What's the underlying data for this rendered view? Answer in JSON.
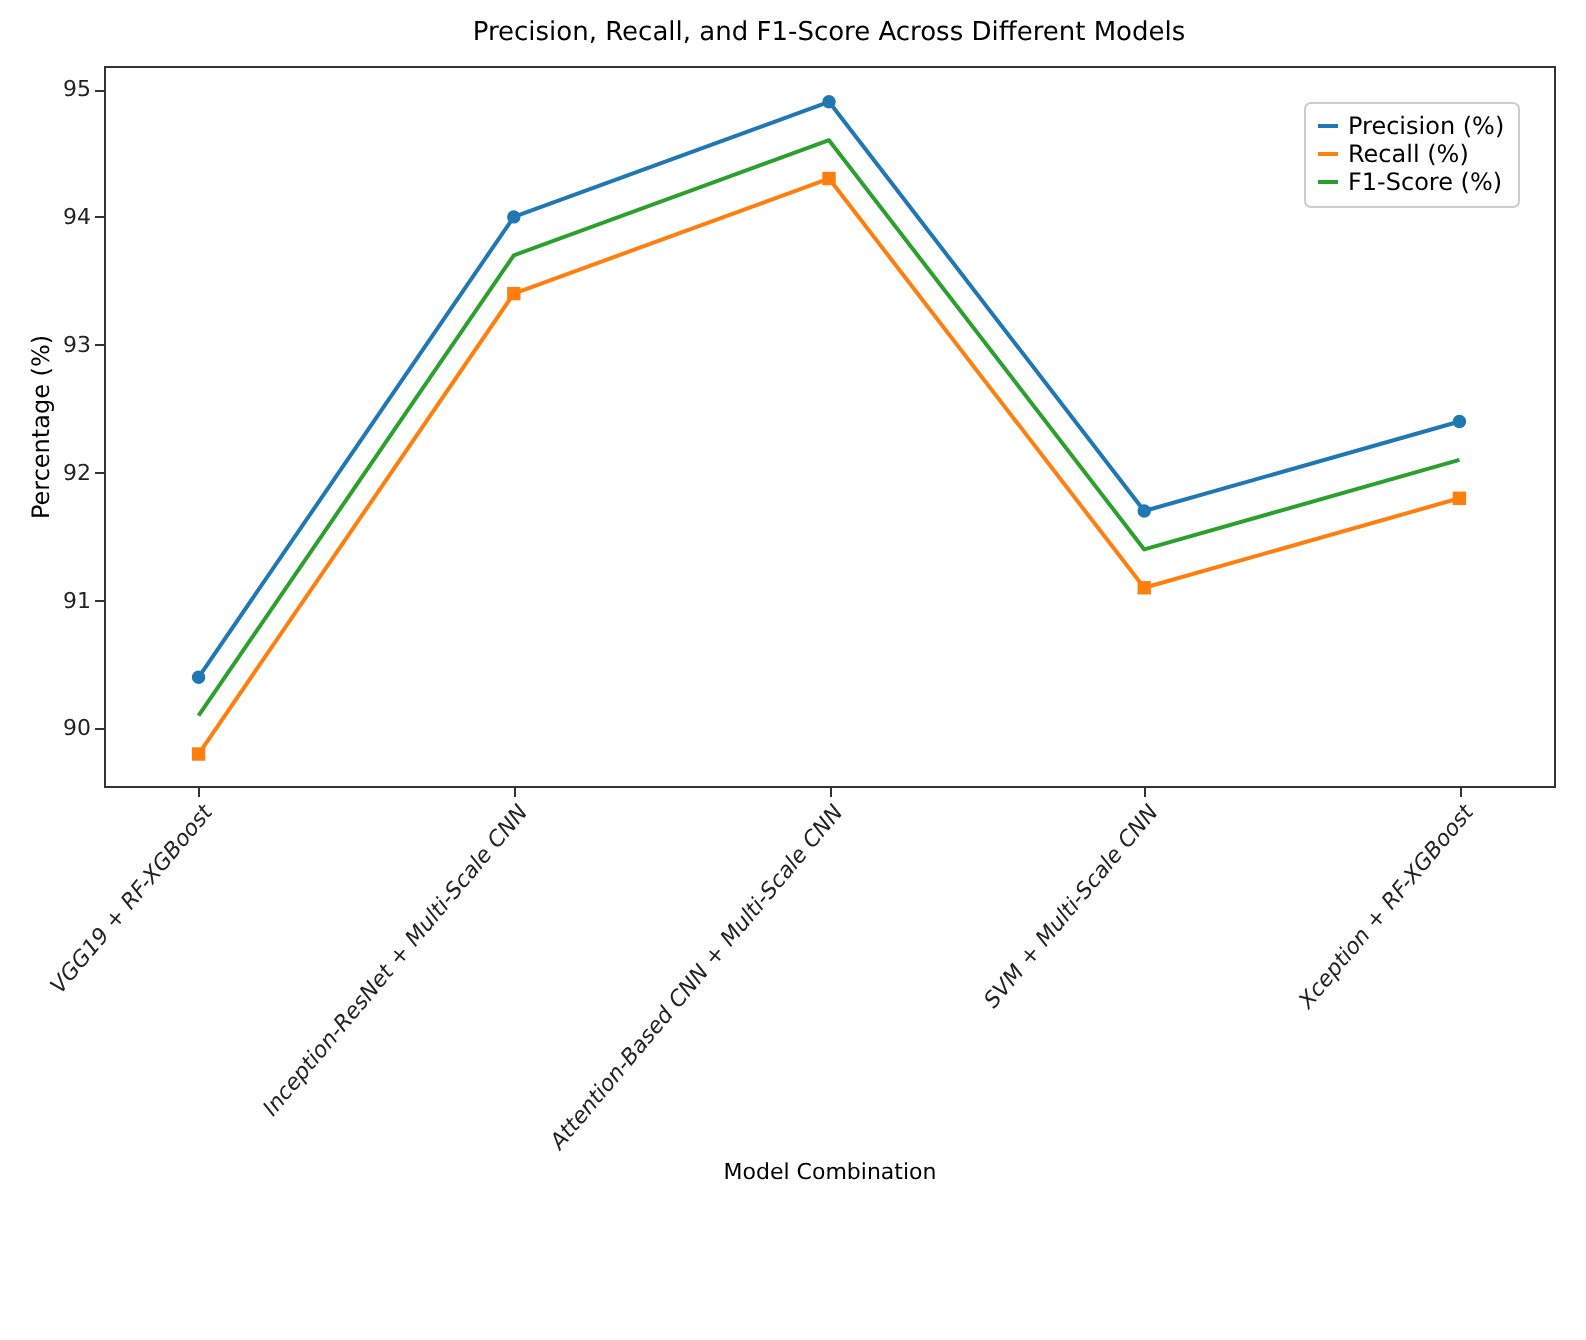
{
  "chart_data": {
    "type": "line",
    "title": "Precision, Recall, and F1-Score Across Different Models",
    "xlabel": "Model Combination",
    "ylabel": "Percentage (%)",
    "categories": [
      "VGG19 + RF-XGBoost",
      "Inception-ResNet + Multi-Scale CNN",
      "Attention-Based CNN + Multi-Scale CNN",
      "SVM + Multi-Scale CNN",
      "Xception + RF-XGBoost"
    ],
    "series": [
      {
        "name": "Precision (%)",
        "color": "#1f77b4",
        "marker": "circle",
        "values": [
          90.4,
          94.0,
          94.9,
          91.7,
          92.4
        ]
      },
      {
        "name": "Recall (%)",
        "color": "#ff7f0e",
        "marker": "square",
        "values": [
          89.8,
          93.4,
          94.3,
          91.1,
          91.8
        ]
      },
      {
        "name": "F1-Score (%)",
        "color": "#2ca02c",
        "marker": "none",
        "values": [
          90.1,
          93.7,
          94.6,
          91.4,
          92.1
        ]
      }
    ],
    "ylim": [
      89.55,
      95.18
    ],
    "yticks": [
      90,
      91,
      92,
      93,
      94,
      95
    ],
    "grid": false,
    "legend": "top right"
  }
}
